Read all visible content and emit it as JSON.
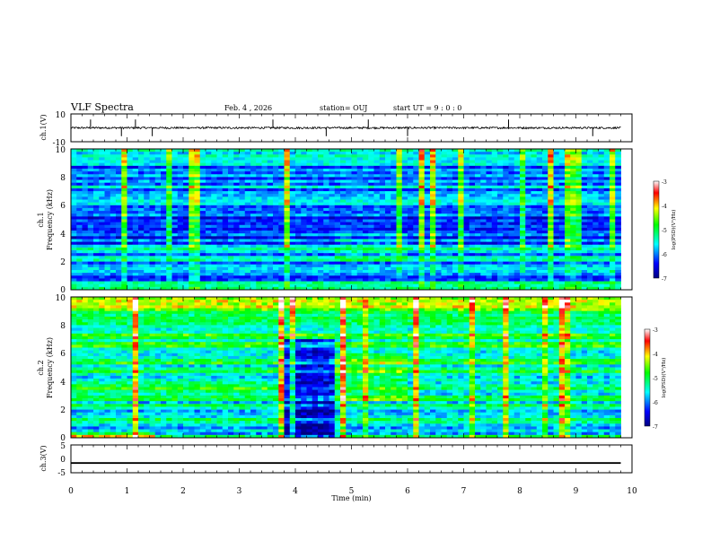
{
  "header": {
    "title": "VLF Spectra",
    "date": "Feb. 4 , 2026",
    "station": "station= OUJ",
    "start_ut": "start UT =  9 : 0 : 0"
  },
  "axes": {
    "xlabel": "Time (min)",
    "ch1_wave_ylabel": "ch.1(V)",
    "ch1_spec_ylabel_top": "ch.1",
    "ch1_spec_ylabel": "Frequency (kHz)",
    "ch2_spec_ylabel_top": "ch.2",
    "ch2_spec_ylabel": "Frequency (kHz)",
    "ch3_wave_ylabel": "ch.3(V)",
    "colorbar_label": "log(PSD)(V²/Hz)"
  },
  "colors": {
    "colormap": [
      "#000080",
      "#0000ff",
      "#00ffff",
      "#00ff00",
      "#ffff00",
      "#ff0000",
      "#ffffff"
    ],
    "line": "#000000"
  },
  "chart_data": [
    {
      "type": "line",
      "title": "VLF Spectra",
      "ylabel": "ch.1(V)",
      "xlabel": "Time (min)",
      "xlim": [
        0,
        10
      ],
      "ylim": [
        -10,
        10
      ],
      "yticks": [
        "10",
        "-10"
      ],
      "series": [
        {
          "baseline": 0,
          "noise_amplitude": 0.7,
          "spike_times": [
            0.35,
            0.9,
            1.15,
            1.45,
            3.6,
            4.55,
            5.3,
            6.0,
            7.8,
            9.3
          ]
        }
      ]
    },
    {
      "type": "heatmap",
      "ylabel": "Frequency (kHz)",
      "xlim": [
        0,
        10
      ],
      "ylim": [
        0,
        10
      ],
      "yticks": [
        "0",
        "2",
        "4",
        "6",
        "8",
        "10"
      ],
      "data_end_min": 9.8,
      "colorbar": {
        "range": [
          -7,
          -3
        ],
        "ticks": [
          "-3",
          "-4",
          "-5",
          "-6",
          "-7"
        ]
      },
      "features": {
        "dark_band_khz": [
          4.6,
          5.3
        ],
        "bright_line_khz": [
          0.3,
          0.5
        ],
        "quiet_segment_min": [
          4.7,
          6.0
        ]
      }
    },
    {
      "type": "heatmap",
      "ylabel": "Frequency (kHz)",
      "xlim": [
        0,
        10
      ],
      "ylim": [
        0,
        10
      ],
      "yticks": [
        "0",
        "2",
        "4",
        "6",
        "8",
        "10"
      ],
      "data_end_min": 9.8,
      "colorbar": {
        "range": [
          -7,
          -3
        ],
        "ticks": [
          "-3",
          "-4",
          "-5",
          "-6",
          "-7"
        ]
      },
      "features": {
        "dark_block_min": [
          3.8,
          4.7
        ],
        "bright_block_min": [
          4.7,
          6.0
        ],
        "bright_line_min": [
          0,
          1.5
        ]
      }
    },
    {
      "type": "line",
      "ylabel": "ch.3(V)",
      "xlabel": "Time (min)",
      "xlim": [
        0,
        10
      ],
      "ylim": [
        -5,
        5
      ],
      "yticks": [
        "5",
        "0",
        "-5"
      ],
      "xticks": [
        "0",
        "1",
        "2",
        "3",
        "4",
        "5",
        "6",
        "7",
        "8",
        "9",
        "10"
      ],
      "series": [
        {
          "constant_value": -1.5,
          "thickness_v": 0.6
        }
      ]
    }
  ]
}
